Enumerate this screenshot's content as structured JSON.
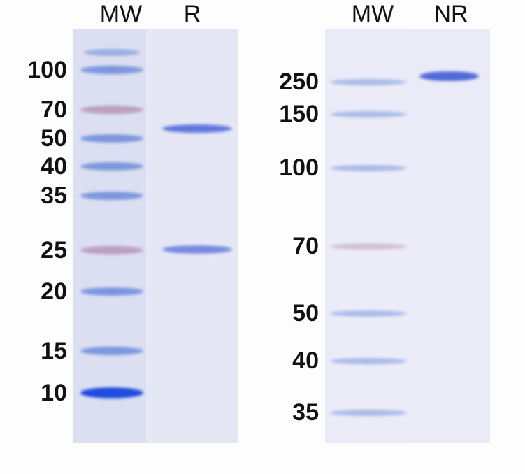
{
  "panels": [
    {
      "id": "reduced",
      "lanes": [
        {
          "label": "MW"
        },
        {
          "label": "R"
        }
      ],
      "markers_kda": [
        "100",
        "70",
        "50",
        "40",
        "35",
        "25",
        "20",
        "15",
        "10"
      ],
      "sample_bands_kda": [
        55,
        25
      ]
    },
    {
      "id": "non-reduced",
      "lanes": [
        {
          "label": "MW"
        },
        {
          "label": "NR"
        }
      ],
      "markers_kda": [
        "250",
        "150",
        "100",
        "70",
        "50",
        "40",
        "35"
      ],
      "sample_bands_kda": [
        250
      ]
    }
  ],
  "colors": {
    "gel": "#e6e7f5",
    "ladder_blue": "#5b7fd6",
    "ladder_pink": "#b08aae",
    "sample_band": "#4a63d8",
    "marker_10": "#1f4be0"
  }
}
